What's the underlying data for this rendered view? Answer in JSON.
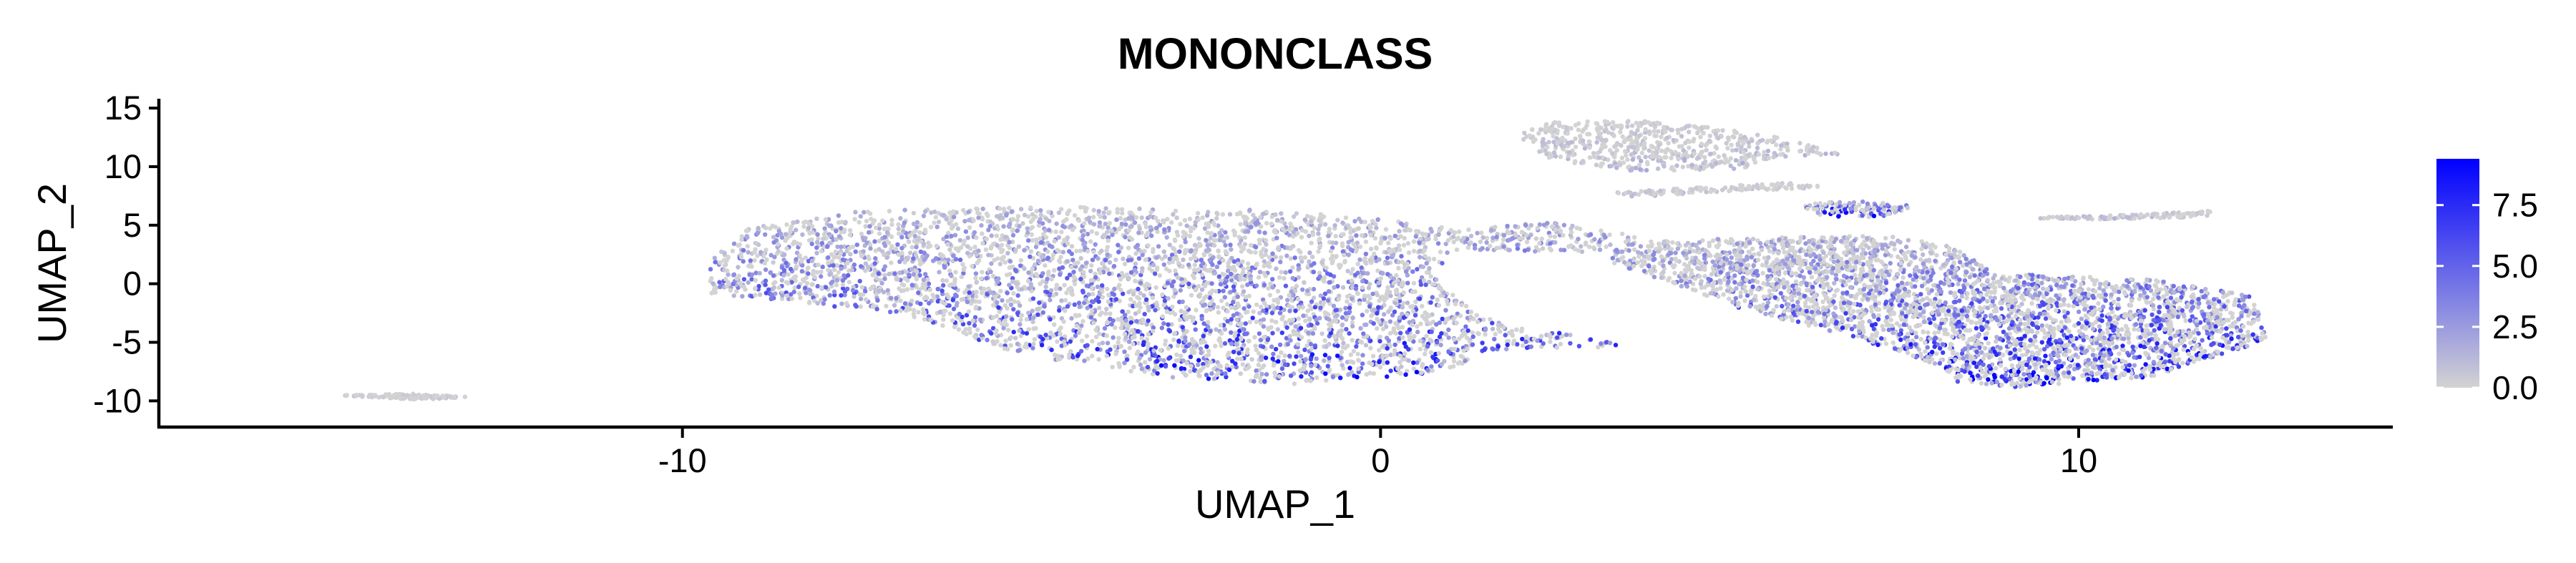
{
  "chart_data": {
    "type": "scatter",
    "title": "MONONCLASS",
    "xlabel": "UMAP_1",
    "ylabel": "UMAP_2",
    "xlim": [
      -17.5,
      14.5
    ],
    "ylim": [
      -12.3,
      15.8
    ],
    "x_ticks": [
      -10,
      0,
      10
    ],
    "x_tick_labels": [
      "-10",
      "0",
      "10"
    ],
    "y_ticks": [
      -10,
      -5,
      0,
      5,
      10,
      15
    ],
    "y_tick_labels": [
      "-10",
      "-5",
      "0",
      "5",
      "10",
      "15"
    ],
    "grid": false,
    "legend": {
      "placement": "right",
      "kind": "colorbar",
      "min": 0.0,
      "max": 9.4,
      "ticks": [
        0.0,
        2.5,
        5.0,
        7.5
      ],
      "tick_labels": [
        "0.0",
        "2.5",
        "5.0",
        "7.5"
      ],
      "low_color": "#d3d3d3",
      "high_color": "#0000ff"
    },
    "regions": [
      {
        "name": "left-tail",
        "outline": [
          [
            -15.6,
            -8.8
          ],
          [
            -14.8,
            -9.6
          ],
          [
            -13.8,
            -9.9
          ],
          [
            -13.0,
            -9.7
          ],
          [
            -13.8,
            -9.4
          ],
          [
            -14.9,
            -9.5
          ],
          [
            -15.4,
            -9.0
          ]
        ],
        "expression": 0.3
      },
      {
        "name": "main-body",
        "outline": [
          [
            -9.6,
            2.0
          ],
          [
            -9.1,
            4.7
          ],
          [
            -7.5,
            6.2
          ],
          [
            -5.0,
            6.6
          ],
          [
            -2.0,
            6.4
          ],
          [
            0.0,
            5.6
          ],
          [
            1.2,
            4.6
          ],
          [
            2.4,
            5.3
          ],
          [
            3.8,
            4.0
          ],
          [
            3.0,
            2.6
          ],
          [
            1.3,
            2.9
          ],
          [
            0.7,
            1.0
          ],
          [
            1.4,
            -2.8
          ],
          [
            3.6,
            -5.4
          ],
          [
            1.8,
            -5.6
          ],
          [
            0.8,
            -7.6
          ],
          [
            -1.2,
            -8.6
          ],
          [
            -3.0,
            -8.0
          ],
          [
            -5.2,
            -6.0
          ],
          [
            -6.8,
            -2.6
          ],
          [
            -9.6,
            -0.8
          ]
        ],
        "expression": 3.6
      },
      {
        "name": "top-cluster",
        "outline": [
          [
            2.0,
            12.5
          ],
          [
            2.2,
            13.8
          ],
          [
            3.6,
            14.0
          ],
          [
            4.8,
            13.3
          ],
          [
            5.9,
            12.4
          ],
          [
            6.6,
            11.0
          ],
          [
            5.6,
            10.8
          ],
          [
            5.2,
            9.8
          ],
          [
            3.6,
            9.6
          ],
          [
            2.4,
            10.6
          ]
        ],
        "expression": 0.7
      },
      {
        "name": "mid-strand",
        "outline": [
          [
            3.3,
            7.8
          ],
          [
            4.8,
            8.3
          ],
          [
            6.0,
            8.7
          ],
          [
            6.4,
            8.2
          ],
          [
            5.0,
            7.9
          ],
          [
            3.6,
            7.4
          ]
        ],
        "expression": 0.5
      },
      {
        "name": "small-cluster",
        "outline": [
          [
            6.0,
            6.8
          ],
          [
            6.9,
            7.1
          ],
          [
            7.7,
            6.6
          ],
          [
            7.1,
            5.6
          ],
          [
            6.3,
            5.8
          ]
        ],
        "expression": 5.0
      },
      {
        "name": "right-strand",
        "outline": [
          [
            9.0,
            5.6
          ],
          [
            10.8,
            5.9
          ],
          [
            12.0,
            6.3
          ],
          [
            11.8,
            5.7
          ],
          [
            10.3,
            5.5
          ]
        ],
        "expression": 0.6
      },
      {
        "name": "right-body",
        "outline": [
          [
            3.4,
            3.6
          ],
          [
            5.2,
            3.9
          ],
          [
            7.3,
            4.1
          ],
          [
            8.2,
            3.2
          ],
          [
            8.8,
            0.9
          ],
          [
            11.0,
            0.4
          ],
          [
            12.0,
            -0.5
          ],
          [
            12.5,
            -1.1
          ],
          [
            12.7,
            -4.8
          ],
          [
            11.0,
            -8.0
          ],
          [
            9.1,
            -8.8
          ],
          [
            8.2,
            -8.4
          ],
          [
            8.0,
            -7.0
          ],
          [
            6.8,
            -4.6
          ],
          [
            5.2,
            -2.2
          ],
          [
            4.2,
            0.0
          ],
          [
            3.3,
            1.8
          ]
        ],
        "expression": 3.9
      }
    ]
  }
}
